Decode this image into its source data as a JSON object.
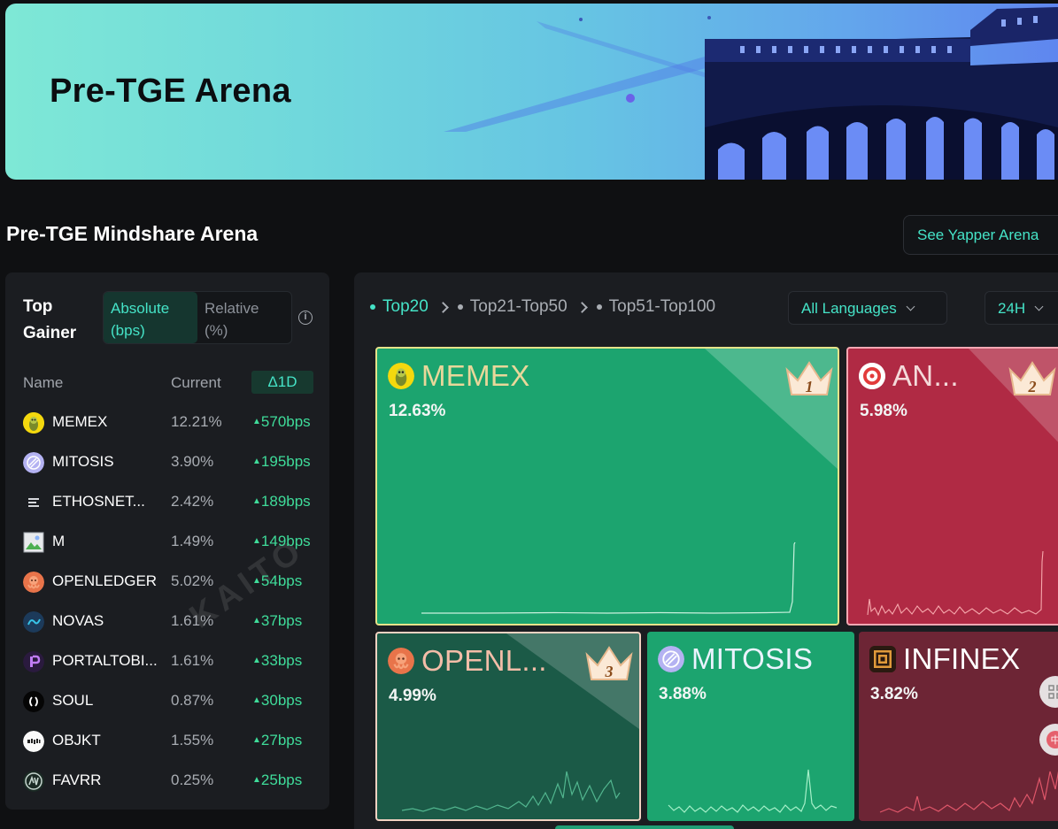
{
  "banner": {
    "title": "Pre-TGE Arena"
  },
  "section": {
    "title": "Pre-TGE Mindshare Arena",
    "yapper_button": "See Yapper Arena"
  },
  "gainer": {
    "label": "Top Gainer",
    "toggle_absolute": "Absolute (bps)",
    "toggle_relative": "Relative (%)",
    "info_icon": "i",
    "watermark": "KAITO",
    "columns": {
      "name": "Name",
      "current": "Current",
      "delta": "Δ1D"
    },
    "rows": [
      {
        "name": "MEMEX",
        "current": "12.21%",
        "delta": "570bps",
        "icon": "memex-icon"
      },
      {
        "name": "MITOSIS",
        "current": "3.90%",
        "delta": "195bps",
        "icon": "mitosis-icon"
      },
      {
        "name": "ETHOSNET...",
        "current": "2.42%",
        "delta": "189bps",
        "icon": "ethos-icon"
      },
      {
        "name": "M",
        "current": "1.49%",
        "delta": "149bps",
        "icon": "broken-image-icon"
      },
      {
        "name": "OPENLEDGER",
        "current": "5.02%",
        "delta": "54bps",
        "icon": "octopus-icon"
      },
      {
        "name": "NOVAS",
        "current": "1.61%",
        "delta": "37bps",
        "icon": "novas-icon"
      },
      {
        "name": "PORTALTOBI...",
        "current": "1.61%",
        "delta": "33bps",
        "icon": "portal-icon"
      },
      {
        "name": "SOUL",
        "current": "0.87%",
        "delta": "30bps",
        "icon": "soul-icon"
      },
      {
        "name": "OBJKT",
        "current": "1.55%",
        "delta": "27bps",
        "icon": "objkt-icon"
      },
      {
        "name": "FAVRR",
        "current": "0.25%",
        "delta": "25bps",
        "icon": "favrr-icon"
      }
    ]
  },
  "arena": {
    "crumbs": [
      "Top20",
      "Top21-Top50",
      "Top51-Top100"
    ],
    "language": "All Languages",
    "timeframe": "24H",
    "tiles": [
      {
        "name": "MEMEX",
        "pct": "12.63%",
        "rank": "1"
      },
      {
        "name": "AN...",
        "pct": "5.98%",
        "rank": "2"
      },
      {
        "name": "OPENL...",
        "pct": "4.99%",
        "rank": "3"
      },
      {
        "name": "MITOSIS",
        "pct": "3.88%"
      },
      {
        "name": "INFINEX",
        "pct": "3.82%"
      }
    ]
  },
  "colors": {
    "accent": "#45e3c7",
    "gain": "#3fdc9a",
    "tile_green": "#1ca46f",
    "tile_red": "#b02a44",
    "tile_dark_green": "#1b5a47",
    "tile_dark_red": "#6d2535"
  }
}
